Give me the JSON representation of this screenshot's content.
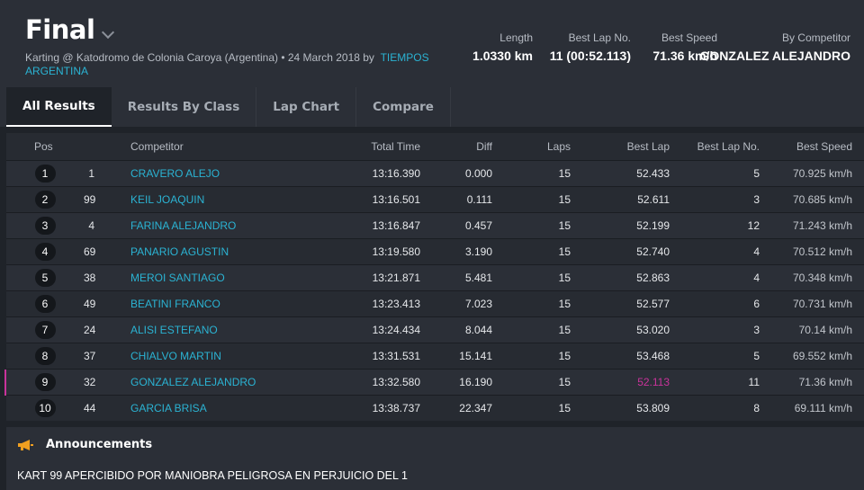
{
  "header": {
    "title": "Final",
    "subtitle_prefix": "Karting @ Katodromo de Colonia Caroya (Argentina) • 24 March 2018 by",
    "subtitle_link": "TIEMPOS ARGENTINA",
    "stats": [
      {
        "label": "Length",
        "value": "1.0330 km"
      },
      {
        "label": "Best Lap No.",
        "value": "11 (00:52.113)"
      },
      {
        "label": "Best Speed",
        "value": "71.36 km/h"
      },
      {
        "label": "By Competitor",
        "value": "GONZALEZ ALEJANDRO"
      }
    ]
  },
  "tabs": [
    {
      "label": "All Results",
      "active": true
    },
    {
      "label": "Results By Class",
      "active": false
    },
    {
      "label": "Lap Chart",
      "active": false
    },
    {
      "label": "Compare",
      "active": false
    }
  ],
  "table": {
    "headers": {
      "pos": "Pos",
      "competitor": "Competitor",
      "total": "Total Time",
      "diff": "Diff",
      "laps": "Laps",
      "best": "Best Lap",
      "bestno": "Best Lap No.",
      "speed": "Best Speed"
    },
    "rows": [
      {
        "pos": "1",
        "num": "1",
        "competitor": "CRAVERO ALEJO",
        "total": "13:16.390",
        "diff": "0.000",
        "laps": "15",
        "best": "52.433",
        "bestno": "5",
        "speed": "70.925 km/h"
      },
      {
        "pos": "2",
        "num": "99",
        "competitor": "KEIL JOAQUIN",
        "total": "13:16.501",
        "diff": "0.111",
        "laps": "15",
        "best": "52.611",
        "bestno": "3",
        "speed": "70.685 km/h"
      },
      {
        "pos": "3",
        "num": "4",
        "competitor": "FARINA ALEJANDRO",
        "total": "13:16.847",
        "diff": "0.457",
        "laps": "15",
        "best": "52.199",
        "bestno": "12",
        "speed": "71.243 km/h"
      },
      {
        "pos": "4",
        "num": "69",
        "competitor": "PANARIO AGUSTIN",
        "total": "13:19.580",
        "diff": "3.190",
        "laps": "15",
        "best": "52.740",
        "bestno": "4",
        "speed": "70.512 km/h"
      },
      {
        "pos": "5",
        "num": "38",
        "competitor": "MEROI SANTIAGO",
        "total": "13:21.871",
        "diff": "5.481",
        "laps": "15",
        "best": "52.863",
        "bestno": "4",
        "speed": "70.348 km/h"
      },
      {
        "pos": "6",
        "num": "49",
        "competitor": "BEATINI FRANCO",
        "total": "13:23.413",
        "diff": "7.023",
        "laps": "15",
        "best": "52.577",
        "bestno": "6",
        "speed": "70.731 km/h"
      },
      {
        "pos": "7",
        "num": "24",
        "competitor": "ALISI ESTEFANO",
        "total": "13:24.434",
        "diff": "8.044",
        "laps": "15",
        "best": "53.020",
        "bestno": "3",
        "speed": "70.14 km/h"
      },
      {
        "pos": "8",
        "num": "37",
        "competitor": "CHIALVO MARTIN",
        "total": "13:31.531",
        "diff": "15.141",
        "laps": "15",
        "best": "53.468",
        "bestno": "5",
        "speed": "69.552 km/h"
      },
      {
        "pos": "9",
        "num": "32",
        "competitor": "GONZALEZ ALEJANDRO",
        "total": "13:32.580",
        "diff": "16.190",
        "laps": "15",
        "best": "52.113",
        "bestno": "11",
        "speed": "71.36 km/h"
      },
      {
        "pos": "10",
        "num": "44",
        "competitor": "GARCIA BRISA",
        "total": "13:38.737",
        "diff": "22.347",
        "laps": "15",
        "best": "53.809",
        "bestno": "8",
        "speed": "69.111 km/h"
      }
    ]
  },
  "announcements": {
    "title": "Announcements",
    "text": "KART 99 APERCIBIDO POR MANIOBRA PELIGROSA EN PERJUICIO DEL 1"
  },
  "colors": {
    "accent_link": "#2bb3d3",
    "best_lap_highlight": "#c9339b",
    "announcement_icon": "#f0a020"
  }
}
